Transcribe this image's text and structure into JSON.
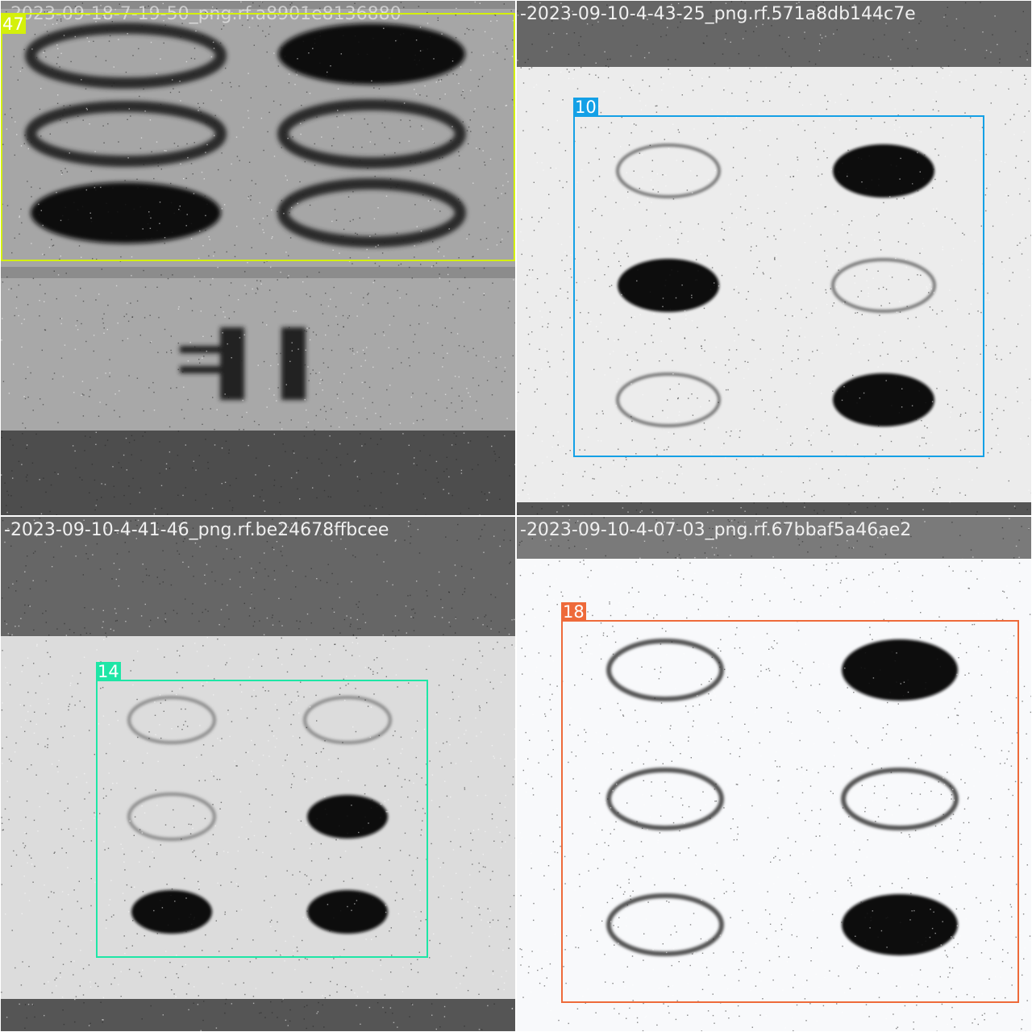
{
  "tiles": [
    {
      "caption": "-2023-09-18-7-19-50_png.rf.a8901e8136880",
      "detection": {
        "label": "47",
        "color": "#d4f00a"
      }
    },
    {
      "caption": "-2023-09-10-4-43-25_png.rf.571a8db144c7e",
      "detection": {
        "label": "10",
        "color": "#14a0e6"
      }
    },
    {
      "caption": "-2023-09-10-4-41-46_png.rf.be24678ffbcee",
      "detection": {
        "label": "14",
        "color": "#1ee6a6"
      }
    },
    {
      "caption": "-2023-09-10-4-07-03_png.rf.67bbaf5a46ae2",
      "detection": {
        "label": "18",
        "color": "#ee6a3a"
      }
    }
  ]
}
